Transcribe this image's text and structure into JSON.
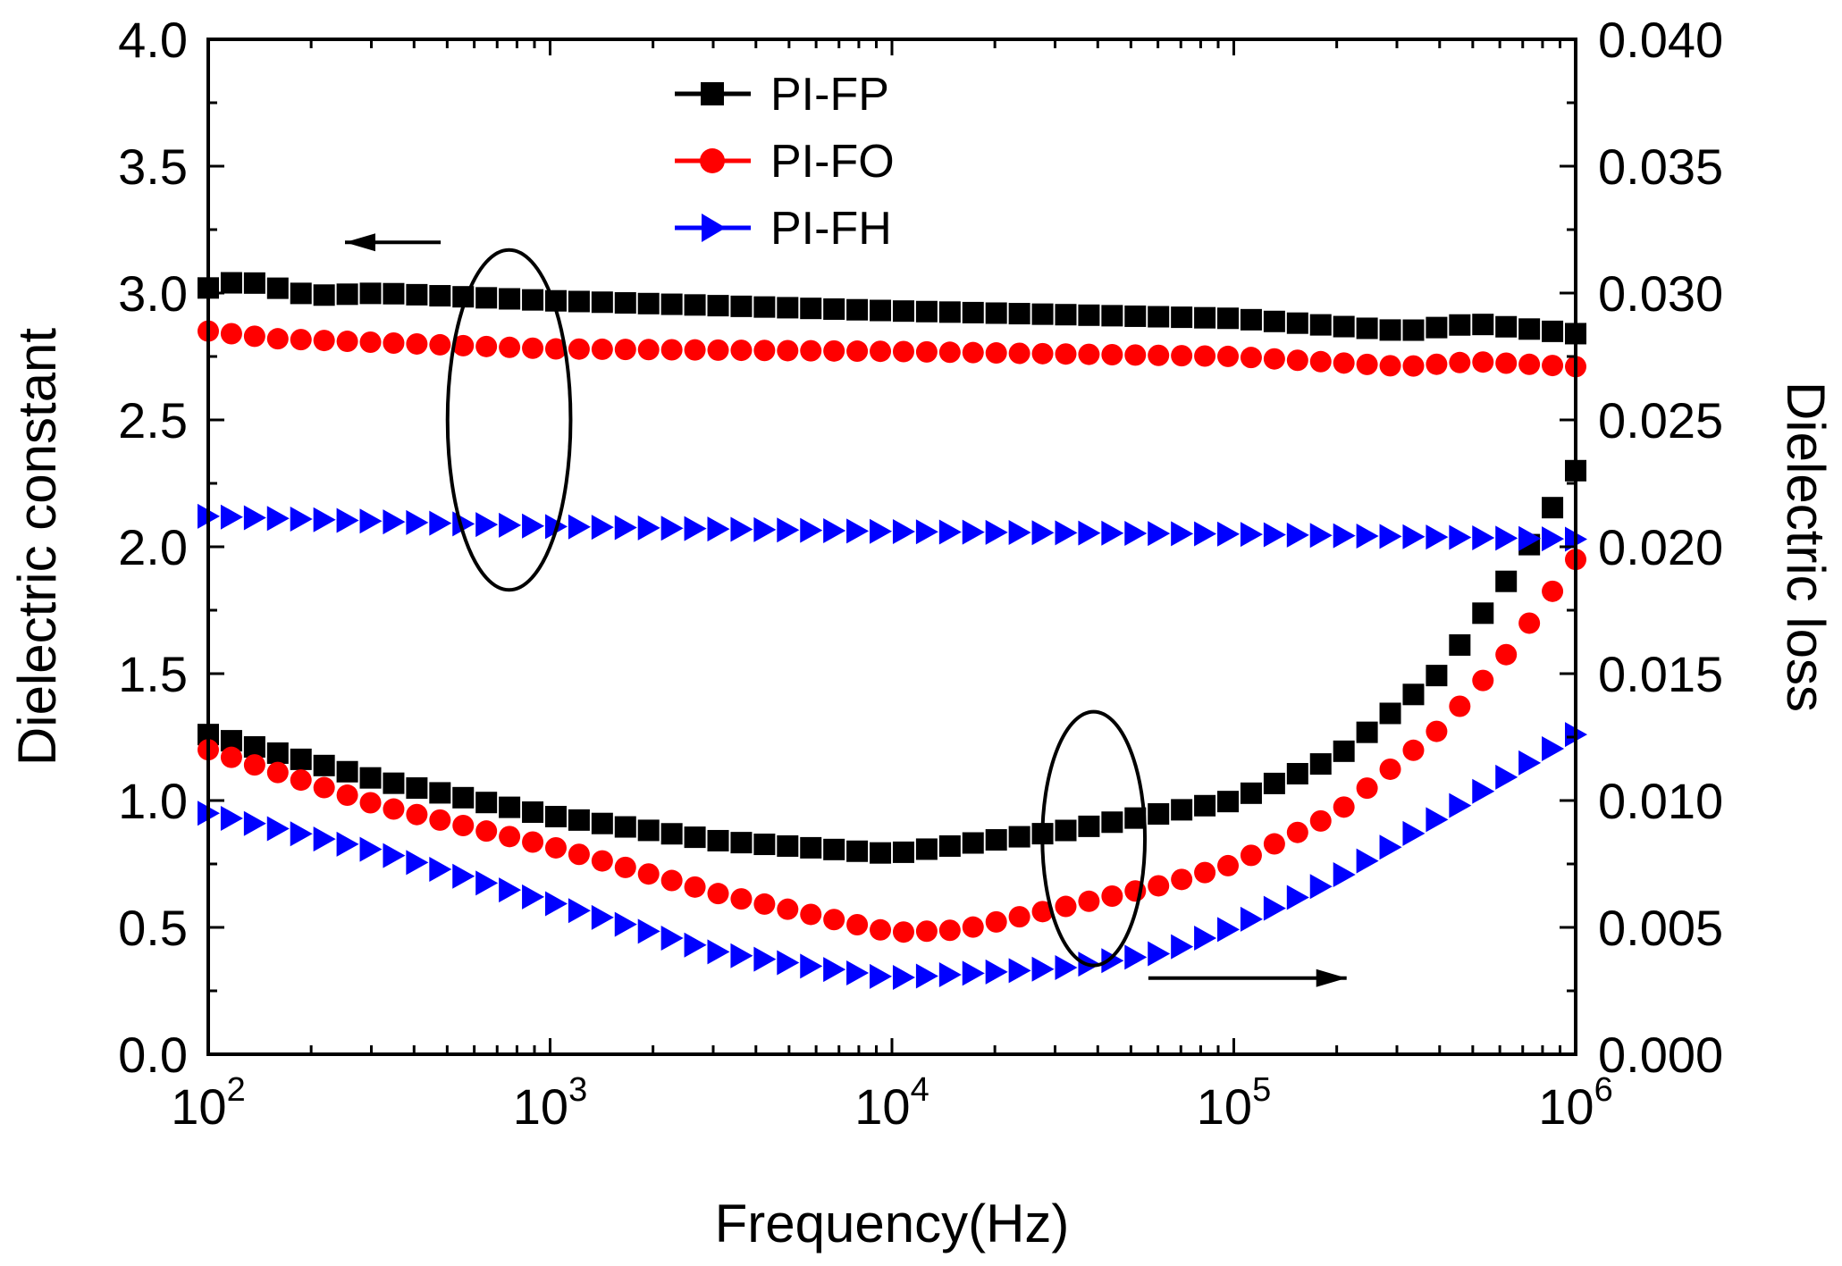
{
  "chart_data": {
    "type": "scatter",
    "xlabel": "Frequency(Hz)",
    "ylabel_left": "Dielectric constant",
    "ylabel_right": "Dielectric loss",
    "xscale": "log",
    "xlim": [
      100,
      1000000
    ],
    "ylim_left": [
      0.0,
      4.0
    ],
    "ylim_right": [
      0.0,
      0.04
    ],
    "x_ticks": [
      {
        "value": 100,
        "base": "10",
        "exp": "2"
      },
      {
        "value": 1000,
        "base": "10",
        "exp": "3"
      },
      {
        "value": 10000,
        "base": "10",
        "exp": "4"
      },
      {
        "value": 100000,
        "base": "10",
        "exp": "5"
      },
      {
        "value": 1000000,
        "base": "10",
        "exp": "6"
      }
    ],
    "y_left_ticks": [
      "0.0",
      "0.5",
      "1.0",
      "1.5",
      "2.0",
      "2.5",
      "3.0",
      "3.5",
      "4.0"
    ],
    "y_right_ticks": [
      "0.000",
      "0.005",
      "0.010",
      "0.015",
      "0.020",
      "0.025",
      "0.030",
      "0.035",
      "0.040"
    ],
    "legend_position": "top-center",
    "points_per_series": 60,
    "series": [
      {
        "name": "PI-FP",
        "color": "#000000",
        "marker": "square",
        "constant_axis": "left",
        "constant_profile": [
          [
            2,
            3.02
          ],
          [
            2.1,
            3.05
          ],
          [
            2.3,
            2.99
          ],
          [
            2.5,
            3.0
          ],
          [
            3,
            2.97
          ],
          [
            4,
            2.93
          ],
          [
            5,
            2.9
          ],
          [
            5.5,
            2.85
          ],
          [
            5.7,
            2.88
          ],
          [
            6,
            2.84
          ]
        ],
        "loss_axis": "right",
        "loss_profile": [
          [
            2,
            0.0126
          ],
          [
            2.5,
            0.0108
          ],
          [
            3,
            0.0094
          ],
          [
            3.5,
            0.0084
          ],
          [
            4,
            0.0079
          ],
          [
            4.5,
            0.0088
          ],
          [
            5,
            0.01
          ],
          [
            5.3,
            0.0117
          ],
          [
            5.6,
            0.015
          ],
          [
            5.8,
            0.0187
          ],
          [
            6,
            0.023
          ]
        ]
      },
      {
        "name": "PI-FO",
        "color": "#ff0000",
        "marker": "circle",
        "constant_axis": "left",
        "constant_profile": [
          [
            2,
            2.85
          ],
          [
            2.2,
            2.82
          ],
          [
            3,
            2.78
          ],
          [
            4,
            2.77
          ],
          [
            5,
            2.75
          ],
          [
            5.5,
            2.71
          ],
          [
            5.7,
            2.73
          ],
          [
            6,
            2.71
          ]
        ],
        "loss_axis": "right",
        "loss_profile": [
          [
            2,
            0.012
          ],
          [
            2.5,
            0.0098
          ],
          [
            3,
            0.0082
          ],
          [
            3.5,
            0.0063
          ],
          [
            4,
            0.0048
          ],
          [
            4.2,
            0.0049
          ],
          [
            4.5,
            0.0058
          ],
          [
            4.8,
            0.0067
          ],
          [
            5,
            0.0075
          ],
          [
            5.3,
            0.0095
          ],
          [
            5.6,
            0.0128
          ],
          [
            5.8,
            0.0158
          ],
          [
            6,
            0.0195
          ]
        ]
      },
      {
        "name": "PI-FH",
        "color": "#0000ff",
        "marker": "triangle-right",
        "constant_axis": "left",
        "constant_profile": [
          [
            2,
            2.12
          ],
          [
            3,
            2.08
          ],
          [
            4,
            2.06
          ],
          [
            5,
            2.05
          ],
          [
            6,
            2.03
          ]
        ],
        "loss_axis": "right",
        "loss_profile": [
          [
            2,
            0.0095
          ],
          [
            2.5,
            0.008
          ],
          [
            3,
            0.006
          ],
          [
            3.5,
            0.004
          ],
          [
            4,
            0.003
          ],
          [
            4.5,
            0.0034
          ],
          [
            4.8,
            0.004
          ],
          [
            5,
            0.005
          ],
          [
            5.3,
            0.0069
          ],
          [
            5.6,
            0.0093
          ],
          [
            6,
            0.0126
          ]
        ]
      }
    ],
    "annotations": [
      {
        "type": "ellipse",
        "cx_log10": 2.88,
        "cy_left": 2.5,
        "rx_decades": 0.18,
        "ry_left": 0.67,
        "meaning": "group: dielectric constant curves"
      },
      {
        "type": "ellipse",
        "cx_log10": 4.59,
        "cy_left": 0.85,
        "rx_decades": 0.15,
        "ry_left": 0.5,
        "meaning": "group: dielectric loss curves"
      },
      {
        "type": "arrow",
        "direction": "left",
        "from": [
          2.68,
          3.2
        ],
        "to": [
          2.4,
          3.2
        ],
        "meaning": "points to left axis"
      },
      {
        "type": "arrow",
        "direction": "right",
        "from": [
          4.75,
          0.3
        ],
        "to": [
          5.33,
          0.3
        ],
        "meaning": "points to right axis"
      }
    ]
  }
}
